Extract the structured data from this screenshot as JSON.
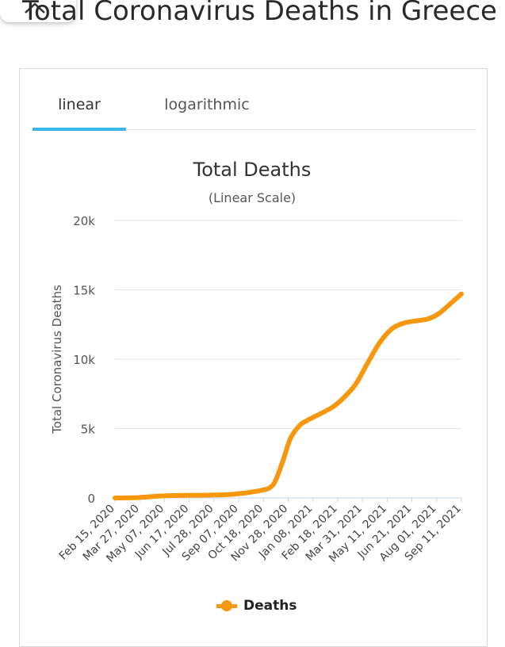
{
  "page": {
    "title": "Total Coronavirus Deaths in Greece"
  },
  "tabs": [
    {
      "label": "linear",
      "active": true
    },
    {
      "label": "logarithmic",
      "active": false
    }
  ],
  "colors": {
    "series": "#f7970d",
    "tab_indicator": "#3bb6e5",
    "grid": "#e6e6e6"
  },
  "chart_data": {
    "type": "line",
    "title": "Total Deaths",
    "subtitle": "(Linear Scale)",
    "ylabel": "Total Coronavirus Deaths",
    "xlabel": "",
    "ylim": [
      0,
      20000
    ],
    "yticks": [
      0,
      5000,
      10000,
      15000,
      20000
    ],
    "ytick_labels": [
      "0",
      "5k",
      "10k",
      "15k",
      "20k"
    ],
    "x_tick_labels": [
      "Feb 15, 2020",
      "Mar 27, 2020",
      "May 07, 2020",
      "Jun 17, 2020",
      "Jul 28, 2020",
      "Sep 07, 2020",
      "Oct 18, 2020",
      "Nov 28, 2020",
      "Jan 08, 2021",
      "Feb 18, 2021",
      "Mar 31, 2021",
      "May 11, 2021",
      "Jun 21, 2021",
      "Aug 01, 2021",
      "Sep 11, 2021"
    ],
    "grid": true,
    "legend_position": "bottom",
    "series": [
      {
        "name": "Deaths",
        "points": [
          [
            "2020-02-15",
            0
          ],
          [
            "2020-03-27",
            30
          ],
          [
            "2020-05-07",
            150
          ],
          [
            "2020-06-17",
            190
          ],
          [
            "2020-07-28",
            205
          ],
          [
            "2020-09-07",
            280
          ],
          [
            "2020-10-18",
            520
          ],
          [
            "2020-11-05",
            750
          ],
          [
            "2020-11-15",
            1300
          ],
          [
            "2020-11-28",
            2800
          ],
          [
            "2020-12-10",
            4300
          ],
          [
            "2020-12-25",
            5200
          ],
          [
            "2021-01-08",
            5600
          ],
          [
            "2021-02-18",
            6500
          ],
          [
            "2021-03-10",
            7200
          ],
          [
            "2021-03-31",
            8200
          ],
          [
            "2021-04-20",
            9700
          ],
          [
            "2021-05-11",
            11200
          ],
          [
            "2021-06-01",
            12200
          ],
          [
            "2021-06-21",
            12600
          ],
          [
            "2021-07-10",
            12750
          ],
          [
            "2021-08-01",
            12900
          ],
          [
            "2021-08-20",
            13300
          ],
          [
            "2021-09-11",
            14100
          ],
          [
            "2021-09-27",
            14700
          ]
        ]
      }
    ]
  }
}
